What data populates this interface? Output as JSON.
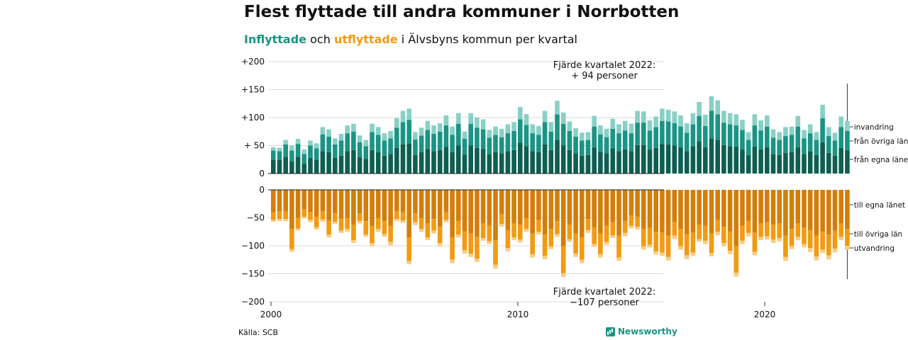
{
  "title": "Flest flyttade till andra kommuner i Norrbotten",
  "subtitle": {
    "part1": "Inflyttade",
    "part2": " och ",
    "part3": "utflyttade",
    "part4": " i Älvsbyns kommun per kvartal"
  },
  "source": "Källa: SCB",
  "brand": "Newsworthy",
  "colors": {
    "in_own": "#0e5e52",
    "in_other": "#1a9484",
    "in_immig": "#88d0c6",
    "out_own": "#d17f0a",
    "out_other": "#f29a11",
    "out_emig": "#f8cd82"
  },
  "chart_data": {
    "type": "bar",
    "stacked": true,
    "grid": true,
    "x_ticks": [
      "2000",
      "2010",
      "2020"
    ],
    "y_ticks_top": [
      "+200",
      "+150",
      "+100",
      "+ 50",
      "0"
    ],
    "y_ticks_bottom": [
      "0",
      "−50",
      "−100",
      "−150",
      "−200"
    ],
    "ylim_top": [
      0,
      200
    ],
    "ylim_bottom": [
      -200,
      0
    ],
    "start_year": 2000,
    "end_quarter": "2022 Q4",
    "series_labels": {
      "in_own": "från egna länet",
      "in_other": "från övriga län",
      "in_immig": "invandring",
      "out_own": "till egna länet",
      "out_other": "till övriga län",
      "out_emig": "utvandring"
    },
    "annotation_top": [
      "Fjärde kvartalet 2022:",
      "+ 94 personer"
    ],
    "annotation_bottom": [
      "Fjärde kvartalet 2022:",
      "−107 personer"
    ],
    "inflyttade_total": [
      47,
      46,
      60,
      50,
      62,
      43,
      59,
      54,
      83,
      79,
      63,
      71,
      86,
      89,
      68,
      60,
      89,
      83,
      72,
      76,
      99,
      112,
      116,
      74,
      82,
      94,
      86,
      90,
      104,
      84,
      108,
      75,
      108,
      100,
      97,
      78,
      84,
      80,
      88,
      92,
      119,
      106,
      88,
      85,
      112,
      92,
      130,
      109,
      93,
      81,
      73,
      74,
      103,
      86,
      80,
      98,
      88,
      94,
      89,
      112,
      111,
      95,
      102,
      116,
      114,
      111,
      104,
      90,
      108,
      128,
      105,
      138,
      131,
      112,
      108,
      106,
      96,
      74,
      106,
      95,
      104,
      79,
      74,
      83,
      84,
      103,
      78,
      88,
      74,
      123,
      83,
      73,
      102,
      94
    ],
    "utflyttade_total": [
      57,
      56,
      56,
      111,
      73,
      51,
      58,
      71,
      57,
      85,
      61,
      77,
      75,
      95,
      60,
      84,
      101,
      75,
      84,
      99,
      56,
      59,
      133,
      63,
      75,
      90,
      78,
      101,
      58,
      131,
      85,
      114,
      120,
      129,
      91,
      97,
      141,
      66,
      110,
      90,
      94,
      75,
      121,
      80,
      124,
      106,
      84,
      156,
      93,
      120,
      131,
      77,
      102,
      121,
      98,
      86,
      127,
      83,
      69,
      71,
      107,
      103,
      116,
      118,
      126,
      88,
      107,
      124,
      118,
      93,
      97,
      119,
      81,
      101,
      115,
      155,
      97,
      83,
      117,
      90,
      89,
      95,
      92,
      127,
      106,
      90,
      103,
      111,
      126,
      113,
      124,
      112,
      90,
      107
    ],
    "inflyttade_own": [
      25,
      24,
      30,
      22,
      30,
      18,
      28,
      25,
      40,
      38,
      28,
      32,
      40,
      42,
      30,
      26,
      42,
      38,
      32,
      35,
      46,
      52,
      54,
      33,
      38,
      44,
      40,
      42,
      48,
      38,
      50,
      34,
      50,
      46,
      44,
      35,
      38,
      36,
      40,
      42,
      55,
      49,
      40,
      38,
      52,
      42,
      60,
      50,
      42,
      36,
      32,
      33,
      47,
      39,
      36,
      45,
      40,
      43,
      40,
      51,
      51,
      43,
      46,
      53,
      52,
      50,
      47,
      40,
      49,
      58,
      47,
      63,
      60,
      51,
      49,
      48,
      43,
      33,
      48,
      43,
      47,
      35,
      33,
      37,
      38,
      47,
      35,
      40,
      33,
      56,
      37,
      32,
      46,
      42
    ],
    "inflyttade_other": [
      16,
      16,
      22,
      19,
      23,
      17,
      22,
      20,
      30,
      28,
      24,
      27,
      32,
      33,
      26,
      23,
      32,
      31,
      27,
      28,
      36,
      40,
      42,
      28,
      30,
      34,
      31,
      33,
      38,
      31,
      39,
      28,
      39,
      36,
      35,
      29,
      31,
      29,
      32,
      34,
      42,
      38,
      32,
      31,
      40,
      33,
      46,
      39,
      34,
      30,
      27,
      27,
      37,
      31,
      29,
      35,
      32,
      34,
      32,
      40,
      40,
      34,
      37,
      41,
      41,
      40,
      37,
      33,
      39,
      45,
      38,
      49,
      46,
      40,
      39,
      38,
      35,
      27,
      38,
      34,
      37,
      29,
      27,
      30,
      31,
      37,
      28,
      32,
      27,
      43,
      30,
      27,
      37,
      34
    ],
    "utflyttade_own": [
      40,
      38,
      38,
      70,
      50,
      35,
      40,
      48,
      38,
      55,
      42,
      52,
      50,
      62,
      42,
      56,
      65,
      50,
      56,
      64,
      38,
      40,
      85,
      42,
      50,
      60,
      52,
      66,
      40,
      85,
      56,
      74,
      78,
      84,
      60,
      64,
      90,
      44,
      72,
      60,
      62,
      50,
      78,
      54,
      80,
      70,
      56,
      100,
      62,
      78,
      85,
      52,
      67,
      78,
      64,
      58,
      82,
      56,
      46,
      48,
      70,
      68,
      75,
      76,
      82,
      58,
      70,
      80,
      76,
      62,
      64,
      78,
      54,
      66,
      75,
      100,
      64,
      56,
      76,
      60,
      58,
      62,
      60,
      82,
      70,
      60,
      68,
      72,
      82,
      74,
      80,
      73,
      60,
      70
    ],
    "utflyttade_other": [
      14,
      14,
      14,
      36,
      19,
      13,
      14,
      19,
      15,
      25,
      15,
      21,
      20,
      28,
      14,
      24,
      30,
      20,
      23,
      29,
      14,
      15,
      42,
      16,
      20,
      25,
      21,
      29,
      14,
      40,
      24,
      34,
      36,
      39,
      26,
      28,
      44,
      17,
      32,
      25,
      27,
      20,
      37,
      21,
      38,
      31,
      23,
      49,
      26,
      36,
      40,
      20,
      30,
      37,
      29,
      23,
      39,
      21,
      18,
      18,
      31,
      30,
      35,
      36,
      38,
      24,
      31,
      37,
      36,
      26,
      27,
      35,
      21,
      29,
      34,
      48,
      27,
      21,
      35,
      24,
      25,
      27,
      26,
      38,
      30,
      24,
      29,
      32,
      37,
      33,
      37,
      32,
      24,
      30
    ]
  }
}
